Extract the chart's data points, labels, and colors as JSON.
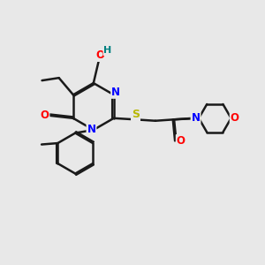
{
  "background_color": "#e8e8e8",
  "bond_color": "#1a1a1a",
  "bond_width": 1.8,
  "atom_colors": {
    "N": "#0000ff",
    "O": "#ff0000",
    "S": "#b8b800",
    "H_label": "#008080",
    "C": "#1a1a1a"
  },
  "font_size_atoms": 8.5,
  "fig_size": [
    3.0,
    3.0
  ],
  "dpi": 100
}
